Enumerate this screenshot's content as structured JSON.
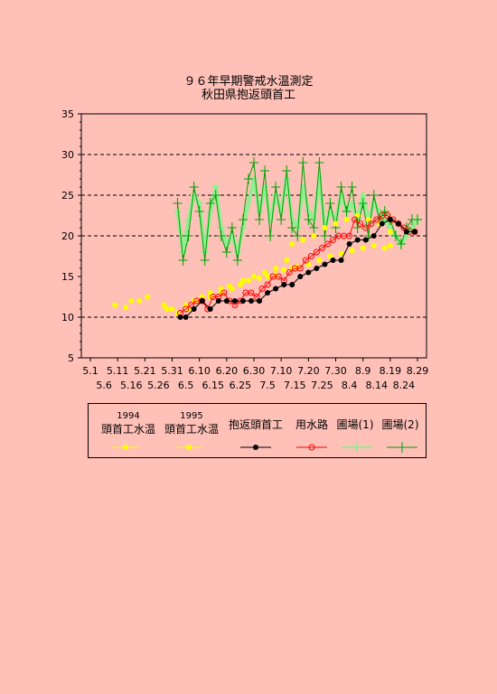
{
  "title": {
    "line1": "９６年早期警戒水温測定",
    "line2": "秋田県抱返頭首工"
  },
  "colors": {
    "background": "#ffc0b8",
    "s1994": "#ffff00",
    "s1995": "#ffff00",
    "dakigaeri": "#000000",
    "yousuiro": "#ff0000",
    "hojo1": "#90ee90",
    "hojo2": "#00a000"
  },
  "legend": {
    "s1994": {
      "year": "1994",
      "label": "頭首工水温"
    },
    "s1995": {
      "year": "1995",
      "label": "頭首工水温"
    },
    "dakigaeri": {
      "label": "抱返頭首工"
    },
    "yousuiro": {
      "label": "用水路"
    },
    "hojo1": {
      "label": "圃場(1)"
    },
    "hojo2": {
      "label": "圃場(2)"
    }
  },
  "chart_data": {
    "type": "line",
    "title": "９６年早期警戒水温測定 秋田県抱返頭首工",
    "ylim": [
      5,
      35
    ],
    "y_ticks": [
      5,
      10,
      15,
      20,
      25,
      30,
      35
    ],
    "grid": "dashed horizontal at 10, 20, 25, 30",
    "x_ticks_row1": [
      "5.1",
      "5.11",
      "5.21",
      "5.31",
      "6.10",
      "6.20",
      "6.30",
      "7.10",
      "7.20",
      "7.30",
      "8.9",
      "8.19",
      "8.29"
    ],
    "x_ticks_row2": [
      "5.6",
      "5.16",
      "5.26",
      "6.5",
      "6.15",
      "6.25",
      "7.5",
      "7.15",
      "7.25",
      "8.4",
      "8.14",
      "8.24"
    ],
    "x_unit": "day index from 5.1 (0 = 5.1)",
    "series": [
      {
        "key": "s1994",
        "name": "1994 頭首工水温",
        "style": "yellow dots",
        "points": [
          [
            9,
            11.5
          ],
          [
            13,
            11.2
          ],
          [
            15,
            12
          ],
          [
            18,
            12
          ],
          [
            21,
            12.5
          ],
          [
            27,
            11.5
          ],
          [
            30,
            11
          ],
          [
            35,
            11.5
          ],
          [
            38,
            12
          ],
          [
            41,
            12.5
          ],
          [
            44,
            13
          ],
          [
            48,
            13.5
          ],
          [
            51,
            13.8
          ],
          [
            55,
            14
          ],
          [
            58,
            14.5
          ],
          [
            62,
            14.8
          ],
          [
            65,
            15
          ],
          [
            68,
            15.2
          ],
          [
            71,
            15.8
          ],
          [
            74,
            16
          ],
          [
            76,
            16.2
          ],
          [
            80,
            16.5
          ],
          [
            84,
            17
          ],
          [
            88,
            17.5
          ],
          [
            92,
            17.8
          ],
          [
            96,
            18.2
          ],
          [
            100,
            18.5
          ],
          [
            104,
            18.8
          ],
          [
            108,
            18.5
          ],
          [
            110,
            18.8
          ]
        ]
      },
      {
        "key": "s1995",
        "name": "1995 頭首工水温",
        "style": "yellow dots",
        "points": [
          [
            28,
            11
          ],
          [
            32,
            10.5
          ],
          [
            36,
            11
          ],
          [
            40,
            12
          ],
          [
            44,
            12.5
          ],
          [
            48,
            13
          ],
          [
            52,
            13.5
          ],
          [
            56,
            14.5
          ],
          [
            60,
            15
          ],
          [
            64,
            15.5
          ],
          [
            68,
            16
          ],
          [
            72,
            17
          ],
          [
            74,
            19
          ],
          [
            78,
            19.5
          ],
          [
            82,
            20
          ],
          [
            86,
            21
          ],
          [
            90,
            21.5
          ],
          [
            94,
            22
          ],
          [
            98,
            22.5
          ],
          [
            102,
            22
          ],
          [
            106,
            21.5
          ],
          [
            110,
            20.5
          ]
        ]
      },
      {
        "key": "dakigaeri",
        "name": "抱返頭首工",
        "style": "black line with dots",
        "points": [
          [
            33,
            10
          ],
          [
            35,
            10
          ],
          [
            38,
            11
          ],
          [
            41,
            12
          ],
          [
            44,
            11
          ],
          [
            47,
            12
          ],
          [
            50,
            12
          ],
          [
            53,
            12
          ],
          [
            56,
            12
          ],
          [
            59,
            12
          ],
          [
            62,
            12
          ],
          [
            65,
            13
          ],
          [
            68,
            13.5
          ],
          [
            71,
            14
          ],
          [
            74,
            14
          ],
          [
            77,
            15
          ],
          [
            80,
            15.5
          ],
          [
            83,
            16
          ],
          [
            86,
            16.5
          ],
          [
            89,
            17
          ],
          [
            92,
            17
          ],
          [
            95,
            19
          ],
          [
            98,
            19.5
          ],
          [
            101,
            19.5
          ],
          [
            104,
            20
          ],
          [
            107,
            21.5
          ],
          [
            110,
            22
          ],
          [
            113,
            21.5
          ],
          [
            116,
            20.5
          ],
          [
            119,
            20.5
          ]
        ]
      },
      {
        "key": "yousuiro",
        "name": "用水路",
        "style": "red line with open circles",
        "points": [
          [
            33,
            10.5
          ],
          [
            35,
            11
          ],
          [
            37,
            11.5
          ],
          [
            39,
            12
          ],
          [
            41,
            12
          ],
          [
            43,
            11
          ],
          [
            45,
            12.5
          ],
          [
            47,
            12.5
          ],
          [
            49,
            13
          ],
          [
            51,
            12
          ],
          [
            53,
            11.5
          ],
          [
            55,
            12
          ],
          [
            57,
            13
          ],
          [
            59,
            13
          ],
          [
            61,
            12.5
          ],
          [
            63,
            13.5
          ],
          [
            65,
            14
          ],
          [
            67,
            15
          ],
          [
            69,
            15
          ],
          [
            71,
            14.5
          ],
          [
            73,
            15.5
          ],
          [
            75,
            16
          ],
          [
            77,
            16
          ],
          [
            79,
            17
          ],
          [
            81,
            17.5
          ],
          [
            83,
            18
          ],
          [
            85,
            18.5
          ],
          [
            87,
            19
          ],
          [
            89,
            19.5
          ],
          [
            91,
            20
          ],
          [
            93,
            20
          ],
          [
            95,
            20
          ],
          [
            97,
            22
          ],
          [
            99,
            21.5
          ],
          [
            101,
            21
          ],
          [
            103,
            21.5
          ],
          [
            105,
            22
          ],
          [
            107,
            22.5
          ],
          [
            109,
            22.5
          ],
          [
            111,
            22
          ],
          [
            113,
            21.5
          ],
          [
            115,
            21
          ],
          [
            117,
            20.5
          ],
          [
            119,
            20.5
          ]
        ]
      },
      {
        "key": "hojo1",
        "name": "圃場(1)",
        "style": "light green thick line",
        "points": [
          [
            32,
            23
          ],
          [
            34,
            18
          ],
          [
            36,
            22
          ],
          [
            38,
            25
          ],
          [
            40,
            24
          ],
          [
            42,
            18
          ],
          [
            44,
            23
          ],
          [
            46,
            26
          ],
          [
            48,
            21
          ],
          [
            50,
            19
          ],
          [
            52,
            20
          ],
          [
            54,
            18
          ],
          [
            56,
            21
          ],
          [
            58,
            24
          ],
          [
            60,
            27
          ],
          [
            62,
            23
          ],
          [
            64,
            26
          ],
          [
            66,
            22
          ],
          [
            68,
            25
          ],
          [
            70,
            23
          ],
          [
            72,
            27
          ],
          [
            74,
            22
          ],
          [
            76,
            21
          ],
          [
            78,
            26
          ],
          [
            80,
            23
          ],
          [
            82,
            22
          ],
          [
            84,
            27
          ],
          [
            86,
            21
          ],
          [
            88,
            23
          ],
          [
            90,
            22
          ],
          [
            92,
            25
          ],
          [
            94,
            23
          ],
          [
            96,
            24
          ],
          [
            98,
            22
          ],
          [
            100,
            25
          ],
          [
            102,
            22
          ],
          [
            104,
            24
          ],
          [
            106,
            23
          ],
          [
            108,
            22
          ],
          [
            110,
            21
          ],
          [
            112,
            20
          ],
          [
            114,
            19
          ],
          [
            116,
            20
          ],
          [
            118,
            21
          ],
          [
            120,
            22
          ]
        ]
      },
      {
        "key": "hojo2",
        "name": "圃場(2)",
        "style": "dark green line with plus markers",
        "points": [
          [
            32,
            24
          ],
          [
            34,
            17
          ],
          [
            36,
            20
          ],
          [
            38,
            26
          ],
          [
            40,
            23
          ],
          [
            42,
            17
          ],
          [
            44,
            24
          ],
          [
            46,
            25
          ],
          [
            48,
            20
          ],
          [
            50,
            18
          ],
          [
            52,
            21
          ],
          [
            54,
            17
          ],
          [
            56,
            22
          ],
          [
            58,
            27
          ],
          [
            60,
            29
          ],
          [
            62,
            22
          ],
          [
            64,
            28
          ],
          [
            66,
            20
          ],
          [
            68,
            26
          ],
          [
            70,
            22
          ],
          [
            72,
            28
          ],
          [
            74,
            21
          ],
          [
            76,
            20
          ],
          [
            78,
            29
          ],
          [
            80,
            22
          ],
          [
            82,
            21
          ],
          [
            84,
            29
          ],
          [
            86,
            20
          ],
          [
            88,
            24
          ],
          [
            90,
            21
          ],
          [
            92,
            26
          ],
          [
            94,
            23
          ],
          [
            96,
            26
          ],
          [
            98,
            21
          ],
          [
            100,
            24
          ],
          [
            102,
            20
          ],
          [
            104,
            25
          ],
          [
            106,
            22
          ],
          [
            108,
            23
          ],
          [
            110,
            22
          ],
          [
            112,
            20
          ],
          [
            114,
            19
          ],
          [
            116,
            21
          ],
          [
            118,
            22
          ],
          [
            120,
            22
          ]
        ]
      }
    ]
  }
}
